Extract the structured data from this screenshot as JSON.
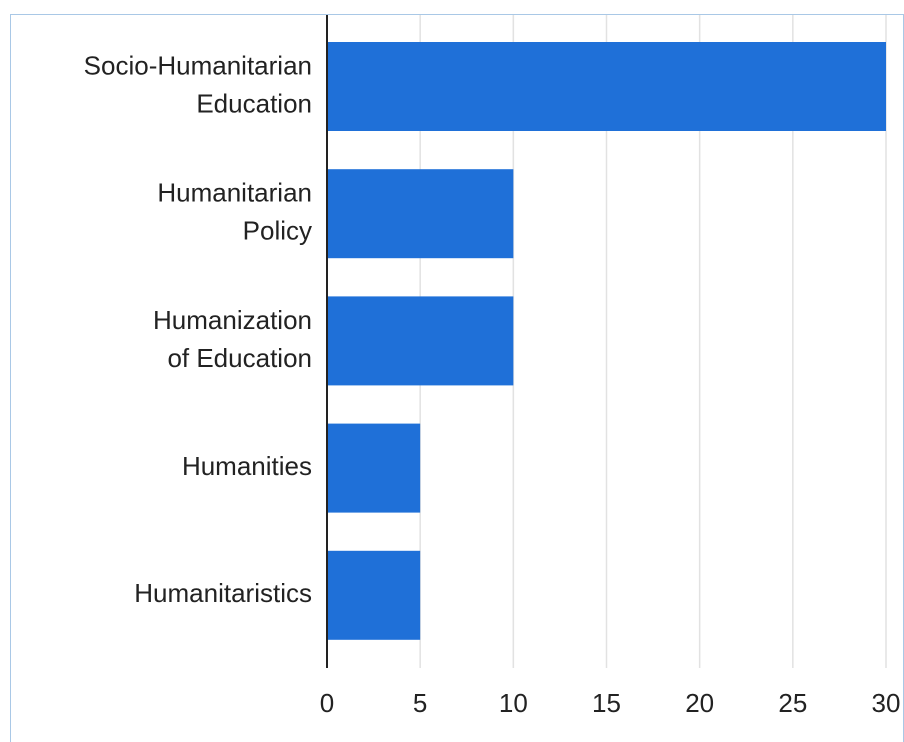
{
  "chart_data": {
    "type": "bar",
    "orientation": "horizontal",
    "categories": [
      [
        "Socio-Humanitarian",
        "Education"
      ],
      [
        "Humanitarian",
        "Policy"
      ],
      [
        "Humanization",
        "of Education"
      ],
      [
        "Humanities"
      ],
      [
        "Humanitaristics"
      ]
    ],
    "values": [
      30,
      10,
      10,
      5,
      5
    ],
    "color": "#1f70d8",
    "xlim": [
      0,
      30
    ],
    "xticks": [
      0,
      5,
      10,
      15,
      20,
      25,
      30
    ],
    "grid": true
  }
}
